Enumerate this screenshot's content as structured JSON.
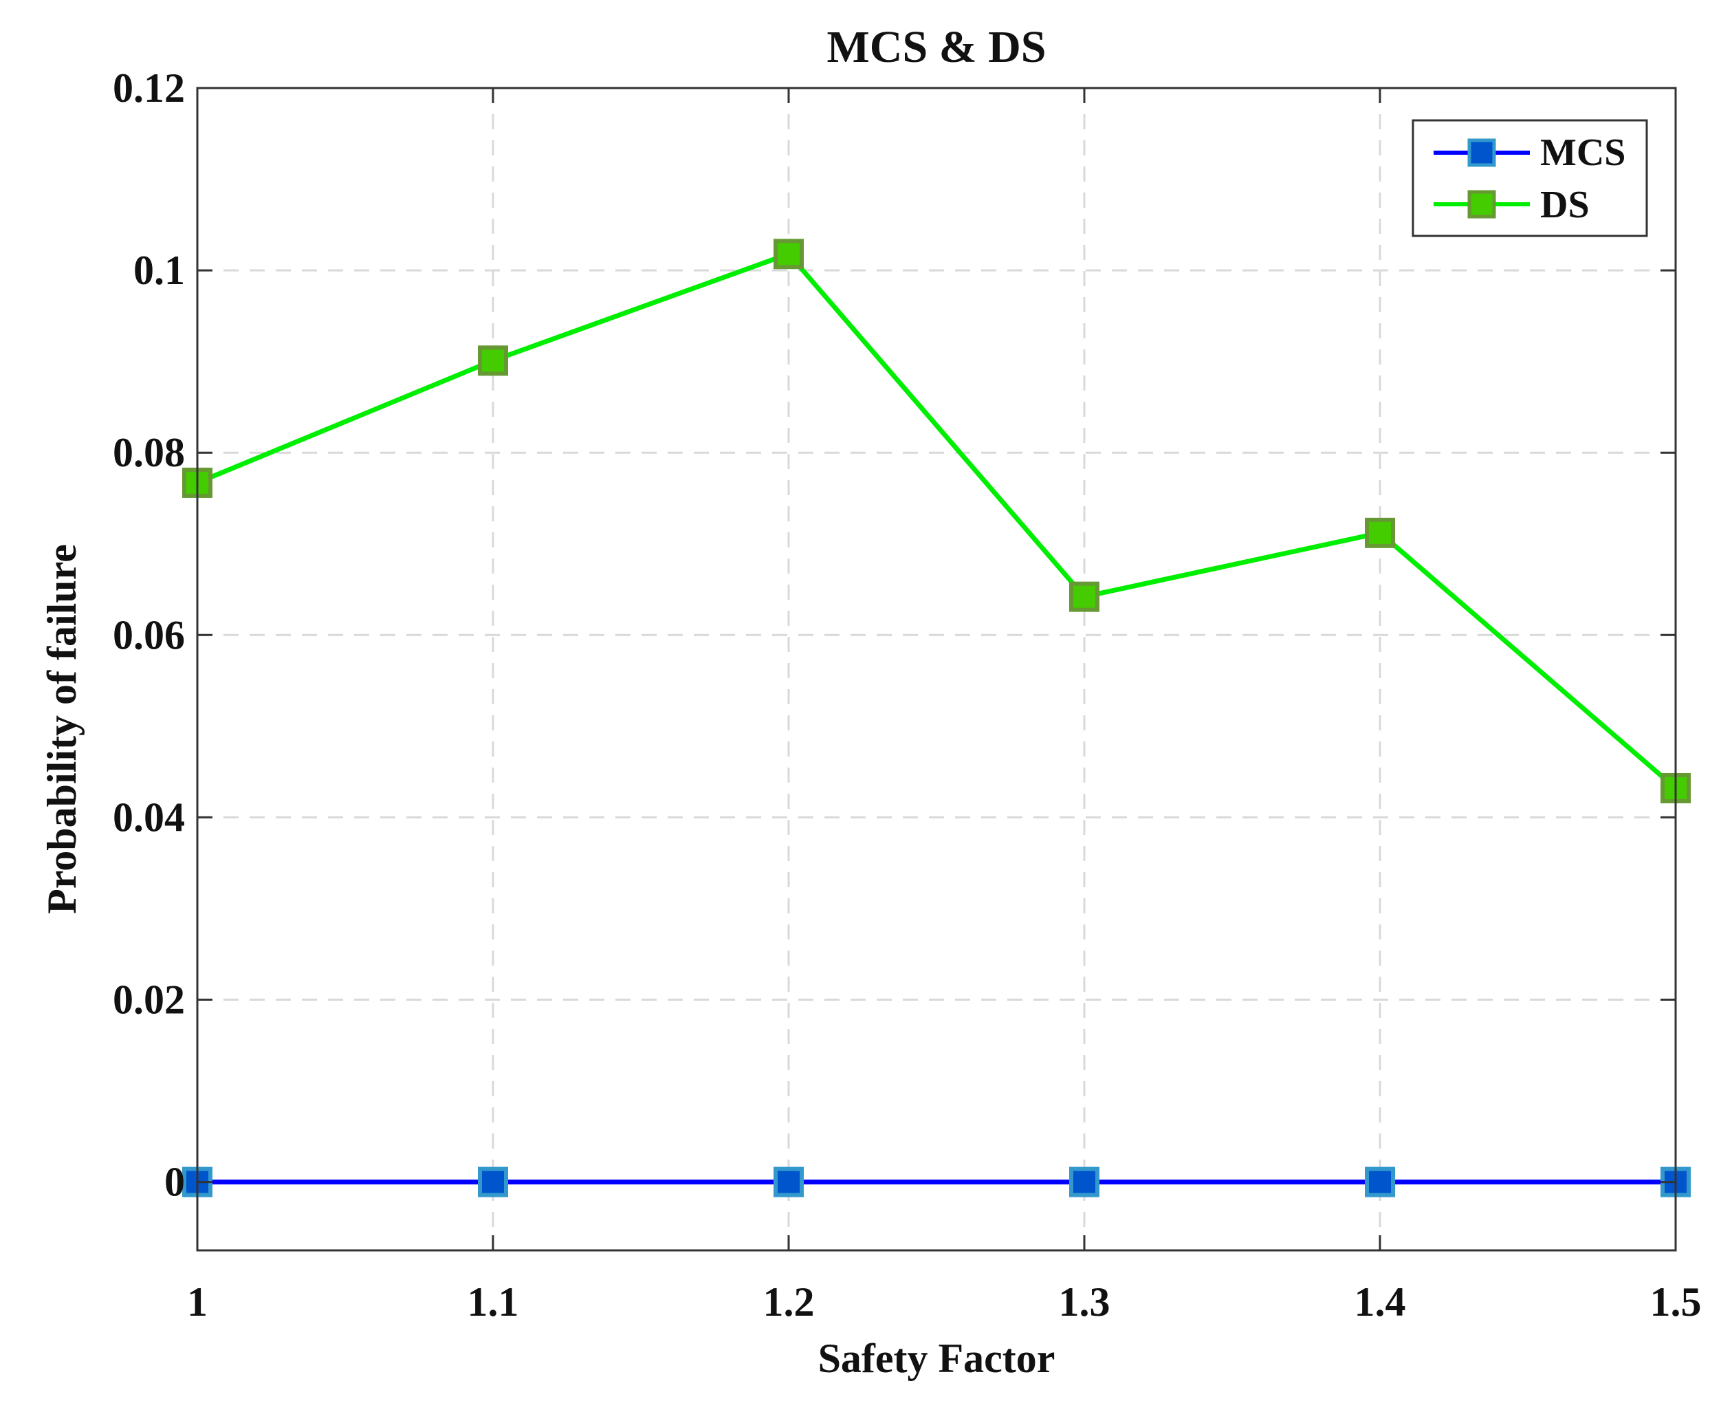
{
  "chart_data": {
    "type": "line",
    "title": "MCS & DS",
    "xlabel": "Safety Factor",
    "ylabel": "Probability of failure",
    "x": [
      1,
      1.1,
      1.2,
      1.3,
      1.4,
      1.5
    ],
    "xlim": [
      1,
      1.5
    ],
    "ylim": [
      -0.0075,
      0.12
    ],
    "xticks": [
      1,
      1.1,
      1.2,
      1.3,
      1.4,
      1.5
    ],
    "xtick_labels": [
      "1",
      "1.1",
      "1.2",
      "1.3",
      "1.4",
      "1.5"
    ],
    "yticks": [
      0,
      0.02,
      0.04,
      0.06,
      0.08,
      0.1,
      0.12
    ],
    "ytick_labels": [
      "0",
      "0.02",
      "0.04",
      "0.06",
      "0.08",
      "0.1",
      "0.12"
    ],
    "grid": true,
    "legend_position": "top-right",
    "series": [
      {
        "name": "MCS",
        "values": [
          0,
          0,
          0,
          0,
          0,
          0
        ],
        "color": "#0000ff",
        "marker_color": "#0055cc",
        "marker_edge": "#3399cc"
      },
      {
        "name": "DS",
        "values": [
          0.0767,
          0.0901,
          0.1018,
          0.0642,
          0.0712,
          0.0432
        ],
        "color": "#00ee00",
        "marker_color": "#44cc00",
        "marker_edge": "#669933"
      }
    ]
  }
}
